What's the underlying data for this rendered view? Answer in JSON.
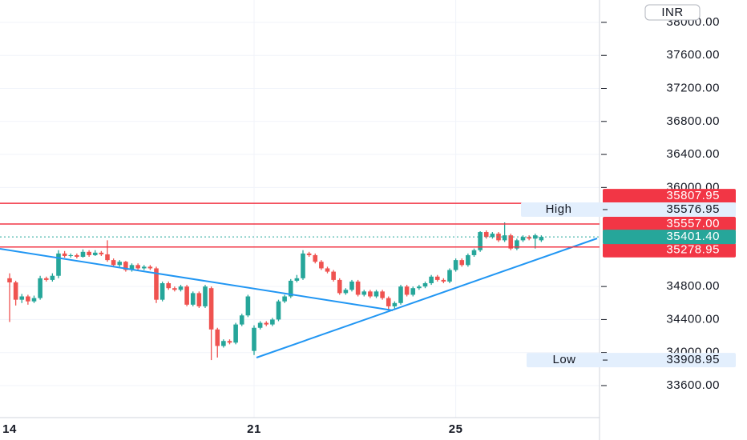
{
  "chart_data": {
    "type": "candlestick",
    "currency": "INR",
    "categories": [
      "14",
      null,
      null,
      null,
      null,
      null,
      null,
      null,
      null,
      null,
      null,
      null,
      null,
      null,
      null,
      null,
      null,
      null,
      null,
      null,
      null,
      null,
      null,
      null,
      null,
      null,
      null,
      null,
      null,
      null,
      null,
      null,
      null,
      null,
      null,
      null,
      null,
      null,
      null,
      null,
      "21",
      null,
      null,
      null,
      null,
      null,
      null,
      null,
      null,
      null,
      null,
      null,
      null,
      null,
      null,
      null,
      null,
      null,
      null,
      null,
      null,
      null,
      null,
      null,
      null,
      null,
      null,
      null,
      null,
      null,
      null,
      null,
      null,
      "25",
      null,
      null,
      null,
      null,
      null,
      null,
      null,
      null,
      null,
      null,
      null,
      null,
      null,
      null
    ],
    "ohlc": [
      [
        34900,
        34960,
        34370,
        34850
      ],
      [
        34850,
        34870,
        34570,
        34640
      ],
      [
        34640,
        34710,
        34600,
        34680
      ],
      [
        34680,
        34700,
        34580,
        34620
      ],
      [
        34620,
        34690,
        34600,
        34660
      ],
      [
        34660,
        34930,
        34640,
        34900
      ],
      [
        34900,
        34920,
        34860,
        34880
      ],
      [
        34880,
        34960,
        34860,
        34930
      ],
      [
        34930,
        35240,
        34900,
        35200
      ],
      [
        35200,
        35230,
        35150,
        35170
      ],
      [
        35170,
        35200,
        35150,
        35180
      ],
      [
        35180,
        35200,
        35140,
        35160
      ],
      [
        35160,
        35250,
        35150,
        35220
      ],
      [
        35220,
        35240,
        35160,
        35180
      ],
      [
        35180,
        35240,
        35170,
        35210
      ],
      [
        35210,
        35230,
        35170,
        35190
      ],
      [
        35190,
        35360,
        35100,
        35120
      ],
      [
        35120,
        35140,
        35040,
        35060
      ],
      [
        35060,
        35120,
        35040,
        35100
      ],
      [
        35100,
        35110,
        34980,
        35000
      ],
      [
        35000,
        35080,
        34980,
        35060
      ],
      [
        35060,
        35080,
        35000,
        35020
      ],
      [
        35020,
        35060,
        35000,
        35040
      ],
      [
        35040,
        35060,
        35000,
        35020
      ],
      [
        35020,
        35040,
        34600,
        34640
      ],
      [
        34640,
        34860,
        34620,
        34840
      ],
      [
        34840,
        34860,
        34760,
        34780
      ],
      [
        34780,
        34800,
        34740,
        34760
      ],
      [
        34760,
        34820,
        34740,
        34800
      ],
      [
        34800,
        34820,
        34560,
        34580
      ],
      [
        34580,
        34740,
        34560,
        34720
      ],
      [
        34720,
        34740,
        34540,
        34560
      ],
      [
        34560,
        34820,
        34540,
        34800
      ],
      [
        34780,
        34800,
        33909,
        34280
      ],
      [
        34280,
        34300,
        33940,
        34080
      ],
      [
        34080,
        34160,
        34060,
        34140
      ],
      [
        34140,
        34160,
        34100,
        34120
      ],
      [
        34120,
        34360,
        34100,
        34340
      ],
      [
        34340,
        34470,
        34320,
        34450
      ],
      [
        34450,
        34700,
        34430,
        34680
      ],
      [
        34020,
        34330,
        33970,
        34300
      ],
      [
        34300,
        34380,
        34280,
        34360
      ],
      [
        34360,
        34380,
        34320,
        34340
      ],
      [
        34340,
        34420,
        34320,
        34400
      ],
      [
        34400,
        34640,
        34380,
        34620
      ],
      [
        34620,
        34700,
        34600,
        34680
      ],
      [
        34680,
        34890,
        34660,
        34870
      ],
      [
        34870,
        34940,
        34850,
        34900
      ],
      [
        34900,
        35240,
        34880,
        35200
      ],
      [
        35200,
        35220,
        35160,
        35180
      ],
      [
        35180,
        35200,
        35080,
        35100
      ],
      [
        35100,
        35120,
        35000,
        35020
      ],
      [
        35020,
        35040,
        34960,
        34980
      ],
      [
        34980,
        35000,
        34860,
        34880
      ],
      [
        34880,
        34900,
        34700,
        34720
      ],
      [
        34720,
        34780,
        34700,
        34760
      ],
      [
        34760,
        34880,
        34740,
        34860
      ],
      [
        34860,
        34880,
        34680,
        34700
      ],
      [
        34700,
        34760,
        34680,
        34740
      ],
      [
        34740,
        34760,
        34660,
        34680
      ],
      [
        34680,
        34760,
        34660,
        34740
      ],
      [
        34740,
        34760,
        34640,
        34660
      ],
      [
        34660,
        34680,
        34520,
        34560
      ],
      [
        34560,
        34620,
        34520,
        34600
      ],
      [
        34600,
        34820,
        34580,
        34800
      ],
      [
        34800,
        34820,
        34680,
        34700
      ],
      [
        34700,
        34800,
        34680,
        34780
      ],
      [
        34780,
        34820,
        34760,
        34800
      ],
      [
        34800,
        34860,
        34780,
        34840
      ],
      [
        34840,
        34940,
        34820,
        34920
      ],
      [
        34920,
        34940,
        34860,
        34880
      ],
      [
        34880,
        34900,
        34840,
        34860
      ],
      [
        34860,
        35020,
        34840,
        35000
      ],
      [
        35000,
        35140,
        34980,
        35120
      ],
      [
        35120,
        35140,
        35040,
        35060
      ],
      [
        35060,
        35200,
        35040,
        35180
      ],
      [
        35180,
        35260,
        35160,
        35240
      ],
      [
        35240,
        35470,
        35220,
        35460
      ],
      [
        35460,
        35480,
        35380,
        35400
      ],
      [
        35400,
        35460,
        35380,
        35440
      ],
      [
        35440,
        35460,
        35340,
        35360
      ],
      [
        35360,
        35577,
        35340,
        35420
      ],
      [
        35420,
        35440,
        35240,
        35260
      ],
      [
        35260,
        35380,
        35240,
        35360
      ],
      [
        35360,
        35420,
        35340,
        35400
      ],
      [
        35400,
        35420,
        35360,
        35380
      ],
      [
        35380,
        35440,
        35260,
        35420
      ],
      [
        35360,
        35420,
        35340,
        35401.4
      ]
    ],
    "up_color": "#26a69a",
    "down_color": "#ef5350",
    "ylim": [
      33212,
      38271
    ],
    "yticks": [
      {
        "value": 38000,
        "label": "38000.00"
      },
      {
        "value": 37600,
        "label": "37600.00"
      },
      {
        "value": 37200,
        "label": "37200.00"
      },
      {
        "value": 36800,
        "label": "36800.00"
      },
      {
        "value": 36400,
        "label": "36400.00"
      },
      {
        "value": 36000,
        "label": "36000.00"
      },
      {
        "value": 34800,
        "label": "34800.00"
      },
      {
        "value": 34400,
        "label": "34400.00"
      },
      {
        "value": 34000,
        "label": "34000.00"
      },
      {
        "value": 33600,
        "label": "33600.00"
      }
    ],
    "grid": true,
    "price_lines": [
      35807.95,
      {
        "value": 35557,
        "label": "35557.00"
      },
      35278.95
    ],
    "price_line_color": "#f23645",
    "last_price": {
      "value": 35401.4,
      "label": "35401.40"
    },
    "high": {
      "name": "High",
      "value": 35576.95
    },
    "low": {
      "name": "Low",
      "value": 33908.95
    }
  }
}
